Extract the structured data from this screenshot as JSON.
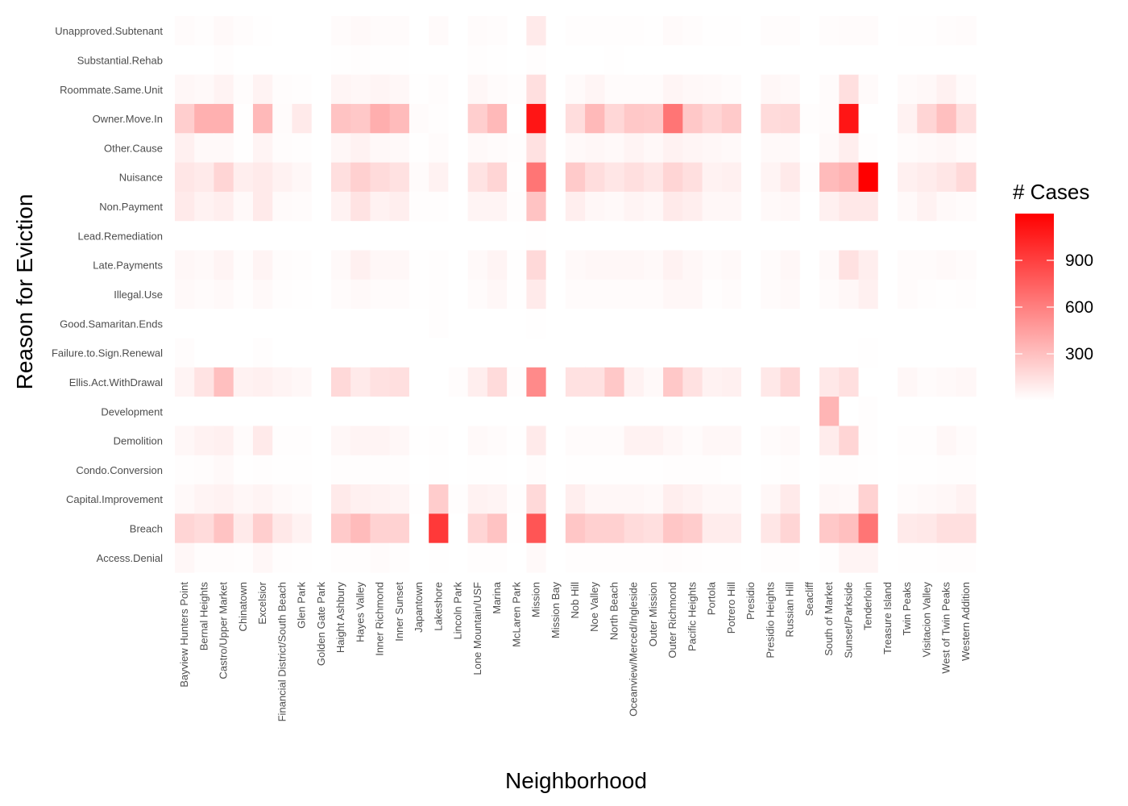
{
  "chart_data": {
    "type": "heatmap",
    "title": "",
    "xlabel": "Neighborhood",
    "ylabel": "Reason for Eviction",
    "x_categories": [
      "Bayview Hunters Point",
      "Bernal Heights",
      "Castro/Upper Market",
      "Chinatown",
      "Excelsior",
      "Financial District/South Beach",
      "Glen Park",
      "Golden Gate Park",
      "Haight Ashbury",
      "Hayes Valley",
      "Inner Richmond",
      "Inner Sunset",
      "Japantown",
      "Lakeshore",
      "Lincoln Park",
      "Lone Mountain/USF",
      "Marina",
      "McLaren Park",
      "Mission",
      "Mission Bay",
      "Nob Hill",
      "Noe Valley",
      "North Beach",
      "Oceanview/Merced/Ingleside",
      "Outer Mission",
      "Outer Richmond",
      "Pacific Heights",
      "Portola",
      "Potrero Hill",
      "Presidio",
      "Presidio Heights",
      "Russian Hill",
      "Seacliff",
      "South of Market",
      "Sunset/Parkside",
      "Tenderloin",
      "Treasure Island",
      "Twin Peaks",
      "Visitacion Valley",
      "West of Twin Peaks",
      "Western Addition"
    ],
    "y_categories": [
      "Unapproved.Subtenant",
      "Substantial.Rehab",
      "Roommate.Same.Unit",
      "Owner.Move.In",
      "Other.Cause",
      "Nuisance",
      "Non.Payment",
      "Lead.Remediation",
      "Late.Payments",
      "Illegal.Use",
      "Good.Samaritan.Ends",
      "Failure.to.Sign.Renewal",
      "Ellis.Act.WithDrawal",
      "Development",
      "Demolition",
      "Condo.Conversion",
      "Capital.Improvement",
      "Breach",
      "Access.Denial"
    ],
    "values": [
      [
        18,
        10,
        30,
        12,
        5,
        2,
        0,
        0,
        20,
        30,
        18,
        20,
        0,
        25,
        0,
        18,
        15,
        0,
        100,
        0,
        10,
        10,
        10,
        8,
        6,
        25,
        15,
        4,
        4,
        0,
        12,
        15,
        0,
        12,
        20,
        20,
        0,
        3,
        5,
        12,
        18
      ],
      [
        0,
        0,
        8,
        0,
        0,
        0,
        0,
        0,
        5,
        8,
        5,
        5,
        0,
        0,
        0,
        10,
        5,
        0,
        8,
        0,
        0,
        0,
        5,
        0,
        0,
        0,
        0,
        0,
        0,
        0,
        0,
        0,
        0,
        0,
        0,
        0,
        0,
        0,
        0,
        0,
        0
      ],
      [
        40,
        30,
        55,
        12,
        55,
        12,
        10,
        0,
        45,
        40,
        45,
        40,
        5,
        15,
        0,
        40,
        20,
        8,
        150,
        0,
        25,
        45,
        20,
        20,
        20,
        45,
        35,
        30,
        20,
        0,
        40,
        30,
        0,
        20,
        150,
        25,
        0,
        25,
        35,
        65,
        25
      ],
      [
        230,
        370,
        370,
        6,
        330,
        20,
        100,
        0,
        280,
        260,
        380,
        320,
        20,
        10,
        0,
        230,
        330,
        0,
        1100,
        0,
        160,
        330,
        190,
        260,
        250,
        650,
        260,
        200,
        250,
        0,
        170,
        180,
        10,
        20,
        1100,
        0,
        0,
        60,
        200,
        300,
        150
      ],
      [
        70,
        30,
        30,
        5,
        50,
        15,
        10,
        0,
        40,
        60,
        35,
        30,
        5,
        20,
        0,
        30,
        20,
        8,
        140,
        0,
        30,
        40,
        30,
        50,
        35,
        60,
        45,
        40,
        30,
        0,
        30,
        30,
        0,
        30,
        80,
        10,
        0,
        20,
        30,
        40,
        20
      ],
      [
        120,
        100,
        200,
        80,
        100,
        60,
        40,
        0,
        150,
        220,
        170,
        140,
        20,
        60,
        0,
        130,
        200,
        5,
        650,
        0,
        250,
        160,
        120,
        150,
        120,
        200,
        150,
        60,
        70,
        0,
        50,
        100,
        10,
        320,
        360,
        1200,
        0,
        70,
        90,
        120,
        180
      ],
      [
        100,
        60,
        80,
        30,
        100,
        25,
        20,
        0,
        60,
        130,
        60,
        80,
        10,
        10,
        0,
        50,
        50,
        10,
        280,
        0,
        80,
        40,
        30,
        50,
        40,
        100,
        80,
        40,
        40,
        0,
        30,
        40,
        0,
        70,
        110,
        110,
        0,
        30,
        60,
        30,
        20
      ],
      [
        0,
        0,
        0,
        0,
        0,
        0,
        0,
        0,
        0,
        0,
        0,
        0,
        0,
        0,
        0,
        0,
        0,
        0,
        5,
        0,
        0,
        0,
        0,
        0,
        0,
        0,
        0,
        0,
        0,
        0,
        0,
        0,
        0,
        0,
        0,
        0,
        0,
        0,
        0,
        0,
        0
      ],
      [
        40,
        30,
        50,
        15,
        50,
        15,
        10,
        0,
        30,
        70,
        40,
        40,
        5,
        10,
        0,
        30,
        50,
        5,
        180,
        0,
        30,
        40,
        40,
        40,
        30,
        60,
        40,
        20,
        30,
        0,
        20,
        40,
        0,
        30,
        140,
        80,
        0,
        20,
        20,
        30,
        20
      ],
      [
        30,
        20,
        30,
        10,
        30,
        10,
        5,
        0,
        20,
        30,
        20,
        20,
        5,
        10,
        0,
        20,
        40,
        5,
        100,
        0,
        20,
        20,
        20,
        20,
        20,
        40,
        40,
        10,
        20,
        0,
        20,
        30,
        0,
        20,
        40,
        70,
        0,
        20,
        10,
        5,
        10
      ],
      [
        0,
        0,
        0,
        0,
        0,
        0,
        0,
        0,
        0,
        0,
        0,
        0,
        0,
        10,
        0,
        0,
        0,
        0,
        5,
        0,
        0,
        0,
        0,
        0,
        0,
        0,
        0,
        0,
        0,
        0,
        0,
        0,
        0,
        0,
        0,
        0,
        0,
        0,
        0,
        0,
        0
      ],
      [
        15,
        0,
        0,
        0,
        10,
        0,
        0,
        0,
        0,
        0,
        0,
        0,
        0,
        0,
        0,
        0,
        0,
        0,
        0,
        0,
        0,
        0,
        0,
        0,
        0,
        0,
        0,
        0,
        0,
        0,
        0,
        0,
        0,
        0,
        0,
        5,
        0,
        0,
        0,
        0,
        0
      ],
      [
        50,
        130,
        300,
        60,
        70,
        50,
        40,
        0,
        180,
        100,
        140,
        150,
        0,
        0,
        15,
        80,
        170,
        10,
        550,
        0,
        140,
        140,
        260,
        60,
        30,
        260,
        140,
        60,
        70,
        0,
        110,
        190,
        0,
        110,
        150,
        0,
        0,
        40,
        20,
        30,
        40
      ],
      [
        0,
        0,
        0,
        0,
        0,
        0,
        0,
        0,
        0,
        0,
        0,
        0,
        0,
        0,
        0,
        0,
        0,
        0,
        0,
        0,
        0,
        0,
        0,
        0,
        0,
        0,
        0,
        0,
        0,
        0,
        0,
        0,
        0,
        350,
        0,
        10,
        0,
        0,
        0,
        0,
        0
      ],
      [
        40,
        60,
        70,
        20,
        100,
        10,
        10,
        0,
        40,
        50,
        50,
        40,
        5,
        10,
        0,
        30,
        20,
        5,
        100,
        0,
        20,
        20,
        20,
        60,
        60,
        40,
        20,
        40,
        40,
        0,
        20,
        30,
        0,
        90,
        200,
        10,
        0,
        10,
        10,
        40,
        20
      ],
      [
        10,
        15,
        30,
        5,
        10,
        5,
        5,
        0,
        10,
        10,
        10,
        10,
        0,
        5,
        0,
        5,
        5,
        0,
        15,
        0,
        5,
        5,
        5,
        5,
        5,
        10,
        10,
        10,
        5,
        0,
        5,
        10,
        0,
        10,
        10,
        5,
        0,
        5,
        5,
        10,
        10
      ],
      [
        30,
        50,
        60,
        40,
        50,
        30,
        20,
        0,
        100,
        70,
        60,
        50,
        5,
        240,
        10,
        60,
        50,
        10,
        180,
        0,
        80,
        40,
        40,
        40,
        30,
        80,
        60,
        40,
        40,
        0,
        40,
        100,
        0,
        40,
        30,
        210,
        0,
        20,
        30,
        40,
        60
      ],
      [
        200,
        170,
        280,
        100,
        230,
        110,
        60,
        0,
        250,
        320,
        210,
        210,
        0,
        930,
        0,
        200,
        280,
        5,
        800,
        0,
        270,
        220,
        220,
        170,
        150,
        270,
        240,
        90,
        90,
        0,
        120,
        200,
        0,
        260,
        300,
        650,
        0,
        100,
        110,
        150,
        150
      ],
      [
        40,
        15,
        15,
        10,
        40,
        10,
        5,
        0,
        10,
        10,
        20,
        10,
        0,
        5,
        0,
        10,
        10,
        0,
        30,
        0,
        10,
        10,
        10,
        10,
        10,
        15,
        10,
        5,
        5,
        0,
        10,
        10,
        0,
        10,
        50,
        50,
        0,
        5,
        5,
        10,
        10
      ]
    ],
    "color_scale": {
      "low": "#ffffff",
      "high": "#ff0000",
      "min": 0,
      "max": 1200
    },
    "legend": {
      "title": "# Cases",
      "ticks": [
        300,
        600,
        900
      ],
      "position": "right"
    },
    "grid": false
  }
}
